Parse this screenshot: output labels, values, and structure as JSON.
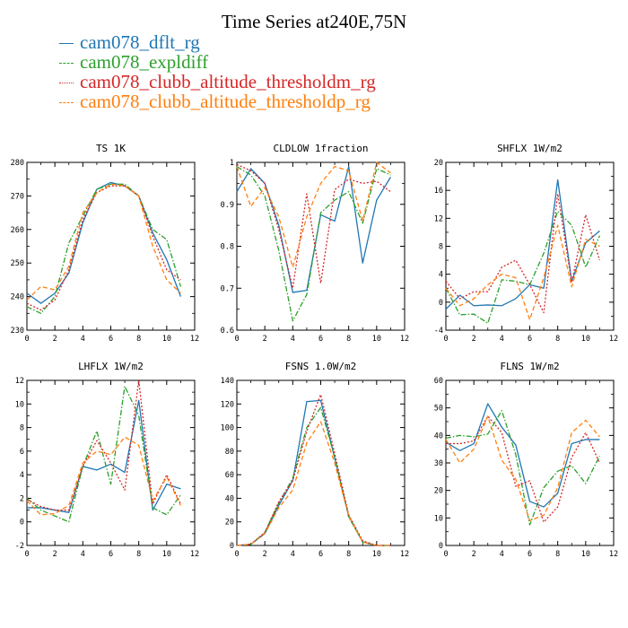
{
  "title": "Time Series at240E,75N",
  "legend": [
    {
      "label": "cam078_dflt_rg",
      "color": "#1f77b4",
      "dash": "solid"
    },
    {
      "label": "cam078_expldiff",
      "color": "#2ca02c",
      "dash": "dashdot"
    },
    {
      "label": "cam078_clubb_altitude_thresholdm_rg",
      "color": "#d62728",
      "dash": "dot"
    },
    {
      "label": "cam078_clubb_altitude_thresholdp_rg",
      "color": "#ff7f0e",
      "dash": "dash"
    }
  ],
  "chart_data": [
    {
      "type": "line",
      "title": "TS  1K",
      "x": [
        0,
        1,
        2,
        3,
        4,
        5,
        6,
        7,
        8,
        9,
        10,
        11
      ],
      "xlim": [
        0,
        12
      ],
      "xticks": [
        0,
        2,
        4,
        6,
        8,
        10,
        12
      ],
      "ylim": [
        230,
        280
      ],
      "yticks": [
        230,
        240,
        250,
        260,
        270,
        280
      ],
      "series": [
        {
          "name": "cam078_dflt_rg",
          "values": [
            241,
            238,
            241,
            247,
            262,
            272,
            274,
            273,
            270,
            259,
            251,
            240
          ]
        },
        {
          "name": "cam078_expldiff",
          "values": [
            237,
            235,
            240,
            256,
            264,
            272,
            273.5,
            273.5,
            270,
            260,
            257,
            243
          ]
        },
        {
          "name": "cam078_clubb_altitude_thresholdm_rg",
          "values": [
            238,
            236,
            239,
            248,
            263,
            271,
            273,
            273,
            270,
            258,
            248,
            245
          ]
        },
        {
          "name": "cam078_clubb_altitude_thresholdp_rg",
          "values": [
            239,
            243,
            242,
            249,
            265,
            271,
            273.5,
            273,
            270,
            255,
            245,
            241
          ]
        }
      ]
    },
    {
      "type": "line",
      "title": "CLDLOW  1fraction",
      "x": [
        0,
        1,
        2,
        3,
        4,
        5,
        6,
        7,
        8,
        9,
        10,
        11
      ],
      "xlim": [
        0,
        12
      ],
      "xticks": [
        0,
        2,
        4,
        6,
        8,
        10,
        12
      ],
      "ylim": [
        0.6,
        1.0
      ],
      "yticks": [
        0.6,
        0.7,
        0.8,
        0.9,
        1.0
      ],
      "series": [
        {
          "name": "cam078_dflt_rg",
          "values": [
            0.93,
            0.985,
            0.95,
            0.85,
            0.69,
            0.695,
            0.875,
            0.86,
            0.99,
            0.76,
            0.91,
            0.965
          ]
        },
        {
          "name": "cam078_expldiff",
          "values": [
            0.99,
            0.97,
            0.92,
            0.79,
            0.622,
            0.685,
            0.88,
            0.91,
            0.93,
            0.855,
            0.985,
            0.97
          ]
        },
        {
          "name": "cam078_clubb_altitude_thresholdm_rg",
          "values": [
            0.995,
            0.98,
            0.95,
            0.84,
            0.7,
            0.925,
            0.712,
            0.935,
            0.96,
            0.95,
            0.955,
            0.93
          ]
        },
        {
          "name": "cam078_clubb_altitude_thresholdp_rg",
          "values": [
            0.99,
            0.895,
            0.94,
            0.87,
            0.75,
            0.87,
            0.95,
            0.99,
            0.98,
            0.86,
            1.0,
            0.975
          ]
        }
      ]
    },
    {
      "type": "line",
      "title": "SHFLX  1W/m2",
      "x": [
        0,
        1,
        2,
        3,
        4,
        5,
        6,
        7,
        8,
        9,
        10,
        11
      ],
      "xlim": [
        0,
        12
      ],
      "xticks": [
        0,
        2,
        4,
        6,
        8,
        10,
        12
      ],
      "ylim": [
        -4,
        20
      ],
      "yticks": [
        -4,
        0,
        4,
        8,
        12,
        16,
        20
      ],
      "series": [
        {
          "name": "cam078_dflt_rg",
          "values": [
            -1,
            1,
            -0.5,
            -0.4,
            -0.5,
            0.5,
            2.5,
            2,
            17.5,
            3,
            8.5,
            10.2
          ]
        },
        {
          "name": "cam078_expldiff",
          "values": [
            2,
            -1.8,
            -1.7,
            -3,
            3.2,
            3,
            2.5,
            7,
            13,
            11,
            5,
            9.5
          ]
        },
        {
          "name": "cam078_clubb_altitude_thresholdm_rg",
          "values": [
            3,
            0.5,
            1.5,
            1.5,
            5,
            6,
            2.5,
            -1.5,
            15.5,
            2.8,
            12.5,
            6
          ]
        },
        {
          "name": "cam078_clubb_altitude_thresholdp_rg",
          "values": [
            2,
            -0.5,
            0.5,
            2.5,
            4,
            3.5,
            -2.5,
            3.5,
            11,
            2.2,
            9,
            8
          ]
        }
      ]
    },
    {
      "type": "line",
      "title": "LHFLX  1W/m2",
      "x": [
        0,
        1,
        2,
        3,
        4,
        5,
        6,
        7,
        8,
        9,
        10,
        11
      ],
      "xlim": [
        0,
        12
      ],
      "xticks": [
        0,
        2,
        4,
        6,
        8,
        10,
        12
      ],
      "ylim": [
        -2,
        12
      ],
      "yticks": [
        -2,
        0,
        2,
        4,
        6,
        8,
        10,
        12
      ],
      "series": [
        {
          "name": "cam078_dflt_rg",
          "values": [
            1.2,
            1.2,
            1,
            0.8,
            4.7,
            4.4,
            4.9,
            4.2,
            10.3,
            1,
            3.2,
            2.8
          ]
        },
        {
          "name": "cam078_expldiff",
          "values": [
            2,
            1,
            0.5,
            0,
            4.7,
            7.7,
            3.2,
            11.5,
            9,
            1.2,
            0.6,
            2.3
          ]
        },
        {
          "name": "cam078_clubb_altitude_thresholdm_rg",
          "values": [
            1.9,
            1.3,
            1,
            1,
            4.7,
            6.9,
            5,
            2.7,
            12,
            1.5,
            4,
            1.5
          ]
        },
        {
          "name": "cam078_clubb_altitude_thresholdp_rg",
          "values": [
            1.8,
            0.6,
            0.7,
            1.4,
            5,
            6,
            5.7,
            7.2,
            6.5,
            1.8,
            3.8,
            1.4
          ]
        }
      ]
    },
    {
      "type": "line",
      "title": "FSNS  1.0W/m2",
      "x": [
        0,
        1,
        2,
        3,
        4,
        5,
        6,
        7,
        8,
        9,
        10,
        11
      ],
      "xlim": [
        0,
        12
      ],
      "xticks": [
        0,
        2,
        4,
        6,
        8,
        10,
        12
      ],
      "ylim": [
        0,
        140
      ],
      "yticks": [
        0,
        20,
        40,
        60,
        80,
        100,
        120,
        140
      ],
      "series": [
        {
          "name": "cam078_dflt_rg",
          "values": [
            0,
            1,
            10,
            34,
            55,
            122,
            123,
            74,
            25,
            3,
            0,
            0
          ]
        },
        {
          "name": "cam078_expldiff",
          "values": [
            0,
            1,
            11,
            36,
            57,
            100,
            117,
            75,
            24,
            3,
            0,
            0
          ]
        },
        {
          "name": "cam078_clubb_altitude_thresholdm_rg",
          "values": [
            0,
            1,
            11,
            37,
            55,
            97,
            128,
            78,
            26,
            4,
            0,
            0
          ]
        },
        {
          "name": "cam078_clubb_altitude_thresholdp_rg",
          "values": [
            0,
            1,
            10,
            32,
            47,
            87,
            105,
            70,
            25,
            3,
            0,
            0
          ]
        }
      ]
    },
    {
      "type": "line",
      "title": "FLNS  1W/m2",
      "x": [
        0,
        1,
        2,
        3,
        4,
        5,
        6,
        7,
        8,
        9,
        10,
        11
      ],
      "xlim": [
        0,
        12
      ],
      "xticks": [
        0,
        2,
        4,
        6,
        8,
        10,
        12
      ],
      "ylim": [
        0,
        60
      ],
      "yticks": [
        0,
        10,
        20,
        30,
        40,
        50,
        60
      ],
      "series": [
        {
          "name": "cam078_dflt_rg",
          "values": [
            37.5,
            34.5,
            37,
            51.5,
            43,
            36.5,
            16,
            14,
            19,
            37,
            38.5,
            38.5
          ]
        },
        {
          "name": "cam078_expldiff",
          "values": [
            39,
            40,
            39.5,
            40.5,
            49,
            33,
            7.5,
            21,
            27,
            29,
            22.5,
            32.5
          ]
        },
        {
          "name": "cam078_clubb_altitude_thresholdm_rg",
          "values": [
            37,
            37,
            38,
            47,
            41,
            21.5,
            23.5,
            8.5,
            14,
            32,
            41,
            30
          ]
        },
        {
          "name": "cam078_clubb_altitude_thresholdp_rg",
          "values": [
            38.5,
            30,
            35,
            47,
            31,
            24,
            9,
            11,
            21,
            41,
            45.5,
            39.5
          ]
        }
      ]
    }
  ]
}
